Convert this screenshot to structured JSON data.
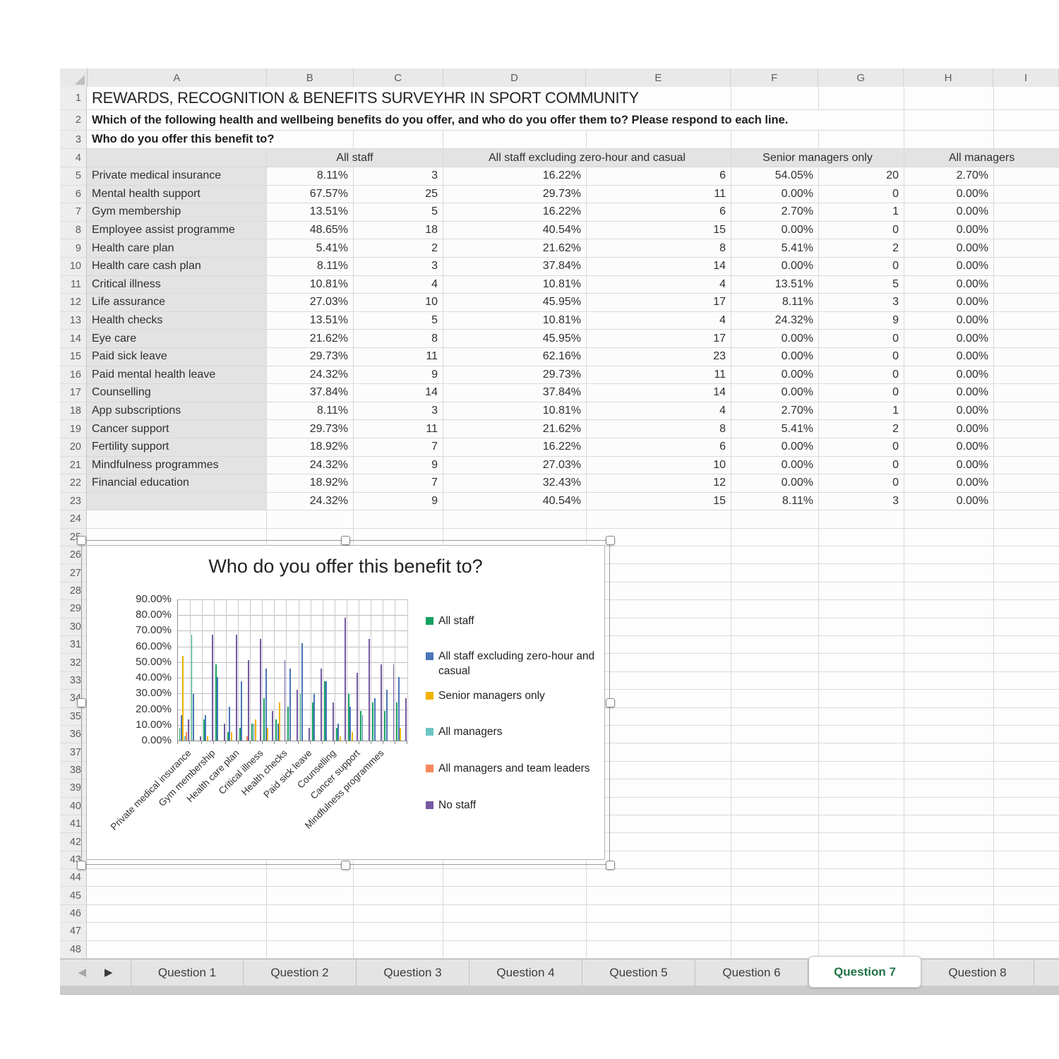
{
  "titles": {
    "r1": "REWARDS, RECOGNITION & BENEFITS SURVEYHR IN SPORT COMMUNITY",
    "r2": "Which of the following health and wellbeing benefits do you offer, and who do you offer them to? Please respond to each line.",
    "r3": "Who do you offer this benefit to?"
  },
  "columns": [
    "A",
    "B",
    "C",
    "D",
    "E",
    "F",
    "G",
    "H",
    "I"
  ],
  "row_count": 48,
  "group_headers": [
    "All staff",
    "All staff excluding zero-hour and casual",
    "Senior managers only",
    "All managers"
  ],
  "table_rows": [
    {
      "label": "Private medical insurance",
      "cells": [
        "8.11%",
        "3",
        "16.22%",
        "6",
        "54.05%",
        "20",
        "2.70%",
        ""
      ]
    },
    {
      "label": "Mental health support",
      "cells": [
        "67.57%",
        "25",
        "29.73%",
        "11",
        "0.00%",
        "0",
        "0.00%",
        ""
      ]
    },
    {
      "label": "Gym membership",
      "cells": [
        "13.51%",
        "5",
        "16.22%",
        "6",
        "2.70%",
        "1",
        "0.00%",
        ""
      ]
    },
    {
      "label": "Employee assist programme",
      "cells": [
        "48.65%",
        "18",
        "40.54%",
        "15",
        "0.00%",
        "0",
        "0.00%",
        ""
      ]
    },
    {
      "label": "Health care plan",
      "cells": [
        "5.41%",
        "2",
        "21.62%",
        "8",
        "5.41%",
        "2",
        "0.00%",
        ""
      ]
    },
    {
      "label": "Health care cash plan",
      "cells": [
        "8.11%",
        "3",
        "37.84%",
        "14",
        "0.00%",
        "0",
        "0.00%",
        ""
      ]
    },
    {
      "label": "Critical illness",
      "cells": [
        "10.81%",
        "4",
        "10.81%",
        "4",
        "13.51%",
        "5",
        "0.00%",
        ""
      ]
    },
    {
      "label": "Life assurance",
      "cells": [
        "27.03%",
        "10",
        "45.95%",
        "17",
        "8.11%",
        "3",
        "0.00%",
        ""
      ]
    },
    {
      "label": "Health checks",
      "cells": [
        "13.51%",
        "5",
        "10.81%",
        "4",
        "24.32%",
        "9",
        "0.00%",
        ""
      ]
    },
    {
      "label": "Eye care",
      "cells": [
        "21.62%",
        "8",
        "45.95%",
        "17",
        "0.00%",
        "0",
        "0.00%",
        ""
      ]
    },
    {
      "label": "Paid sick leave",
      "cells": [
        "29.73%",
        "11",
        "62.16%",
        "23",
        "0.00%",
        "0",
        "0.00%",
        ""
      ]
    },
    {
      "label": "Paid mental health leave",
      "cells": [
        "24.32%",
        "9",
        "29.73%",
        "11",
        "0.00%",
        "0",
        "0.00%",
        ""
      ]
    },
    {
      "label": "Counselling",
      "cells": [
        "37.84%",
        "14",
        "37.84%",
        "14",
        "0.00%",
        "0",
        "0.00%",
        ""
      ]
    },
    {
      "label": "App subscriptions",
      "cells": [
        "8.11%",
        "3",
        "10.81%",
        "4",
        "2.70%",
        "1",
        "0.00%",
        ""
      ]
    },
    {
      "label": "Cancer support",
      "cells": [
        "29.73%",
        "11",
        "21.62%",
        "8",
        "5.41%",
        "2",
        "0.00%",
        ""
      ]
    },
    {
      "label": "Fertility support",
      "cells": [
        "18.92%",
        "7",
        "16.22%",
        "6",
        "0.00%",
        "0",
        "0.00%",
        ""
      ]
    },
    {
      "label": "Mindfulness programmes",
      "cells": [
        "24.32%",
        "9",
        "27.03%",
        "10",
        "0.00%",
        "0",
        "0.00%",
        ""
      ]
    },
    {
      "label": "Financial education",
      "cells": [
        "18.92%",
        "7",
        "32.43%",
        "12",
        "0.00%",
        "0",
        "0.00%",
        ""
      ]
    },
    {
      "label": "",
      "cells": [
        "24.32%",
        "9",
        "40.54%",
        "15",
        "8.11%",
        "3",
        "0.00%",
        ""
      ]
    }
  ],
  "chart_data": {
    "type": "bar",
    "title": "Who do you offer this benefit to?",
    "ylim": [
      0,
      90
    ],
    "grid": true,
    "legend_position": "right",
    "ytick_labels": [
      "0.00%",
      "10.00%",
      "20.00%",
      "30.00%",
      "40.00%",
      "50.00%",
      "60.00%",
      "70.00%",
      "80.00%",
      "90.00%"
    ],
    "categories": [
      "Private medical insurance",
      "Mental health support",
      "Gym membership",
      "Employee assist programme",
      "Health care plan",
      "Health care cash plan",
      "Critical illness",
      "Life assurance",
      "Health checks",
      "Eye care",
      "Paid sick leave",
      "Paid mental health leave",
      "Counselling",
      "App subscriptions",
      "Cancer support",
      "Fertility support",
      "Mindfulness programmes",
      "Financial education",
      ""
    ],
    "xtick_labels_shown": [
      "Private medical insurance",
      "Gym membership",
      "Health care plan",
      "Critical illness",
      "Health checks",
      "Paid sick leave",
      "Counselling",
      "Cancer support",
      "Mindfulness programmes"
    ],
    "series": [
      {
        "name": "All staff",
        "color": "#14A15F",
        "values": [
          8.11,
          67.57,
          13.51,
          48.65,
          5.41,
          8.11,
          10.81,
          27.03,
          13.51,
          21.62,
          29.73,
          24.32,
          37.84,
          8.11,
          29.73,
          18.92,
          24.32,
          18.92,
          24.32
        ]
      },
      {
        "name": "All staff excluding zero-hour and casual",
        "color": "#4A76B8",
        "values": [
          16.22,
          29.73,
          16.22,
          40.54,
          21.62,
          37.84,
          10.81,
          45.95,
          10.81,
          45.95,
          62.16,
          29.73,
          37.84,
          10.81,
          21.62,
          16.22,
          27.03,
          32.43,
          40.54
        ]
      },
      {
        "name": "Senior managers only",
        "color": "#EFB300",
        "values": [
          54.05,
          0,
          2.7,
          0,
          5.41,
          0,
          13.51,
          8.11,
          24.32,
          0,
          0,
          0,
          0,
          2.7,
          5.41,
          0,
          0,
          0,
          8.11
        ]
      },
      {
        "name": "All managers",
        "color": "#6CC5C3",
        "values": [
          2.7,
          0,
          0,
          0,
          0,
          0,
          0,
          0,
          0,
          0,
          0,
          0,
          0,
          0,
          0,
          0,
          0,
          0,
          0
        ]
      },
      {
        "name": "All managers and team leaders",
        "color": "#F5875B",
        "values": [
          5.41,
          0,
          0,
          0,
          0,
          2.7,
          0,
          0,
          0,
          0,
          0,
          0,
          0,
          0,
          0,
          0,
          0,
          0,
          0
        ]
      },
      {
        "name": "No staff",
        "color": "#7459A1",
        "values": [
          13.51,
          2.7,
          67.57,
          10.81,
          67.57,
          51.35,
          64.86,
          18.92,
          51.35,
          32.43,
          8.11,
          45.95,
          24.32,
          78.38,
          43.24,
          64.86,
          48.65,
          48.65,
          27.03
        ]
      }
    ]
  },
  "tabs": {
    "nav_prev": "◀",
    "nav_next": "▶",
    "items": [
      "Question 1",
      "Question 2",
      "Question 3",
      "Question 4",
      "Question 5",
      "Question 6",
      "Question 7",
      "Question 8"
    ],
    "active": "Question 7",
    "active_color": "#217346"
  }
}
